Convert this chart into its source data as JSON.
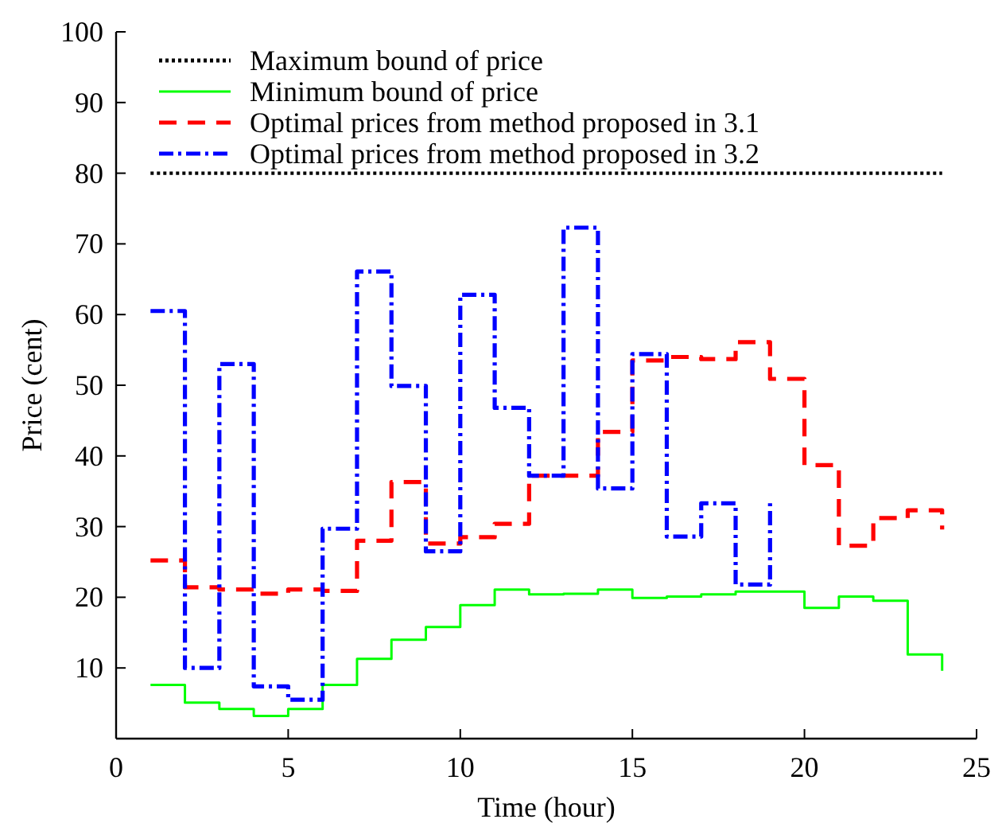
{
  "chart_data": {
    "type": "step",
    "xlabel": "Time (hour)",
    "ylabel": "Price (cent)",
    "xlim": [
      0,
      25
    ],
    "xticks": [
      0,
      5,
      10,
      15,
      20,
      25
    ],
    "ylim": [
      0,
      100
    ],
    "yticks": [
      10,
      20,
      30,
      40,
      50,
      60,
      70,
      80,
      90,
      100
    ],
    "grid": false,
    "legend": "top left",
    "series": [
      {
        "name": "Maximum bound of price",
        "type": "line",
        "line_style": "dotted",
        "color": "#000000",
        "x": [
          1,
          24
        ],
        "values": [
          80,
          80
        ]
      },
      {
        "name": "Minimum bound of price",
        "line_style": "solid",
        "color": "#00ff00",
        "x": [
          1,
          2,
          3,
          4,
          5,
          6,
          7,
          8,
          9,
          10,
          11,
          12,
          13,
          14,
          15,
          16,
          17,
          18,
          19,
          20,
          21,
          22,
          23,
          24
        ],
        "values": [
          7.6,
          5.1,
          4.2,
          3.2,
          4.2,
          7.6,
          11.3,
          14.0,
          15.8,
          18.9,
          21.1,
          20.4,
          20.5,
          21.1,
          19.9,
          20.1,
          20.4,
          20.8,
          20.8,
          18.5,
          20.1,
          19.5,
          11.9,
          9.6
        ]
      },
      {
        "name": "Optimal prices from method proposed in 3.1",
        "line_style": "dashed",
        "color": "#ff0000",
        "x": [
          1,
          2,
          3,
          4,
          5,
          6,
          7,
          8,
          9,
          10,
          11,
          12,
          13,
          14,
          15,
          16,
          17,
          18,
          19,
          20,
          21,
          22,
          23,
          24
        ],
        "values": [
          25.2,
          21.4,
          21.1,
          20.5,
          21.1,
          20.9,
          28.0,
          36.3,
          27.6,
          28.5,
          30.4,
          37.2,
          37.2,
          43.4,
          53.5,
          54.0,
          53.7,
          56.1,
          50.9,
          38.7,
          27.3,
          31.2,
          32.3,
          29.6
        ]
      },
      {
        "name": "Optimal prices from method proposed in 3.2",
        "line_style": "dashdot",
        "color": "#0000ff",
        "x": [
          1,
          2,
          3,
          4,
          5,
          6,
          7,
          8,
          9,
          10,
          11,
          12,
          13,
          14,
          15,
          16,
          17,
          18,
          19
        ],
        "values": [
          60.5,
          10.0,
          53.0,
          7.4,
          5.5,
          29.7,
          66.1,
          49.9,
          26.5,
          62.8,
          46.8,
          37.2,
          72.3,
          35.4,
          54.4,
          28.6,
          33.3,
          21.8,
          33.3
        ]
      }
    ]
  }
}
